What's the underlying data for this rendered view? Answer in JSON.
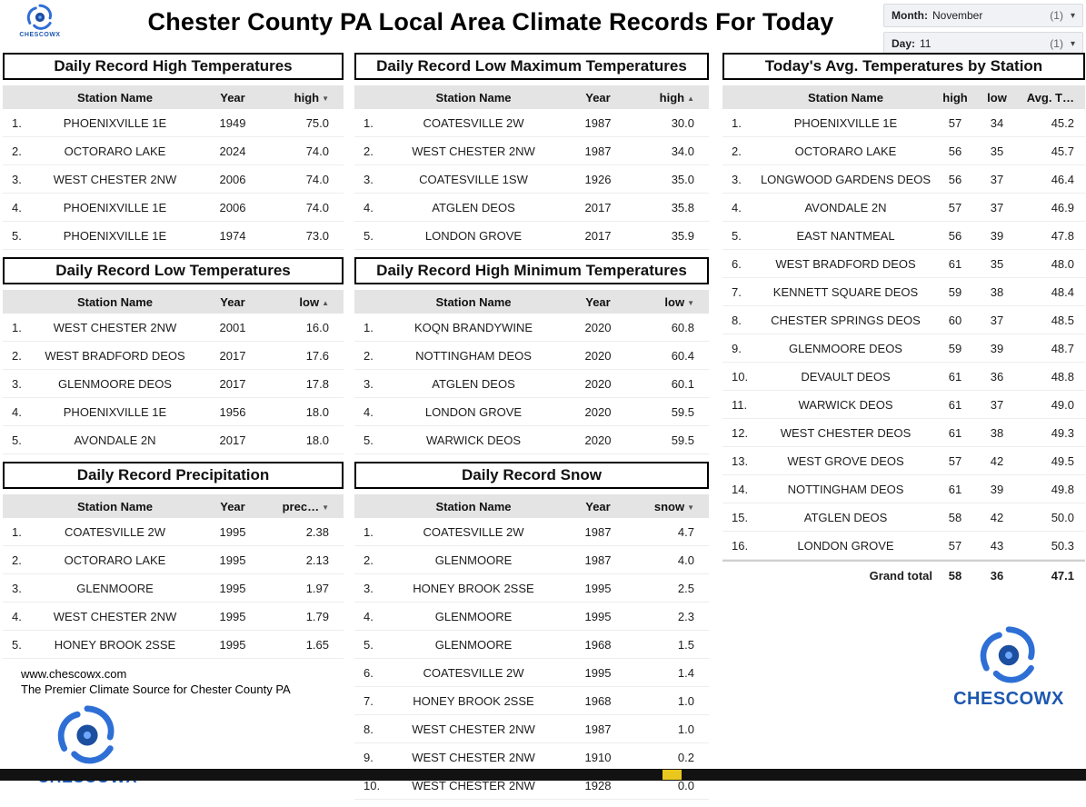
{
  "page": {
    "title": "Chester County PA Local Area Climate Records For Today",
    "brand": "CHESCOWX",
    "website": "www.chescowx.com",
    "tagline": "The Premier Climate Source for Chester County PA",
    "brand_color": "#1d57b0",
    "accent_color": "#e9c71e"
  },
  "icons": {
    "dropdown_caret": "▾"
  },
  "filters": {
    "month": {
      "label": "Month:",
      "value": "November",
      "count": "(1)"
    },
    "day": {
      "label": "Day:",
      "value": "11",
      "count": "(1)"
    }
  },
  "tables": [
    {
      "id": "record-high",
      "title": "Daily Record High Temperatures",
      "layout": "3col",
      "headers": {
        "station": "Station Name",
        "year": "Year",
        "value": "high",
        "arrow": "▼"
      },
      "rows": [
        [
          "1.",
          "PHOENIXVILLE 1E",
          "1949",
          "75.0"
        ],
        [
          "2.",
          "OCTORARO LAKE",
          "2024",
          "74.0"
        ],
        [
          "3.",
          "WEST CHESTER 2NW",
          "2006",
          "74.0"
        ],
        [
          "4.",
          "PHOENIXVILLE 1E",
          "2006",
          "74.0"
        ],
        [
          "5.",
          "PHOENIXVILLE 1E",
          "1974",
          "73.0"
        ]
      ]
    },
    {
      "id": "record-low",
      "title": "Daily Record Low Temperatures",
      "layout": "3col",
      "headers": {
        "station": "Station Name",
        "year": "Year",
        "value": "low",
        "arrow": "▲"
      },
      "rows": [
        [
          "1.",
          "WEST CHESTER 2NW",
          "2001",
          "16.0"
        ],
        [
          "2.",
          "WEST BRADFORD DEOS",
          "2017",
          "17.6"
        ],
        [
          "3.",
          "GLENMOORE DEOS",
          "2017",
          "17.8"
        ],
        [
          "4.",
          "PHOENIXVILLE 1E",
          "1956",
          "18.0"
        ],
        [
          "5.",
          "AVONDALE 2N",
          "2017",
          "18.0"
        ]
      ]
    },
    {
      "id": "precip",
      "title": "Daily Record Precipitation",
      "layout": "3col",
      "headers": {
        "station": "Station Name",
        "year": "Year",
        "value": "prec…",
        "arrow": "▼"
      },
      "rows": [
        [
          "1.",
          "COATESVILLE 2W",
          "1995",
          "2.38"
        ],
        [
          "2.",
          "OCTORARO LAKE",
          "1995",
          "2.13"
        ],
        [
          "3.",
          "GLENMOORE",
          "1995",
          "1.97"
        ],
        [
          "4.",
          "WEST CHESTER 2NW",
          "1995",
          "1.79"
        ],
        [
          "5.",
          "HONEY BROOK 2SSE",
          "1995",
          "1.65"
        ]
      ]
    },
    {
      "id": "low-max",
      "title": "Daily Record Low Maximum Temperatures",
      "layout": "3col",
      "headers": {
        "station": "Station Name",
        "year": "Year",
        "value": "high",
        "arrow": "▲"
      },
      "rows": [
        [
          "1.",
          "COATESVILLE 2W",
          "1987",
          "30.0"
        ],
        [
          "2.",
          "WEST CHESTER 2NW",
          "1987",
          "34.0"
        ],
        [
          "3.",
          "COATESVILLE 1SW",
          "1926",
          "35.0"
        ],
        [
          "4.",
          "ATGLEN DEOS",
          "2017",
          "35.8"
        ],
        [
          "5.",
          "LONDON GROVE",
          "2017",
          "35.9"
        ]
      ]
    },
    {
      "id": "high-min",
      "title": "Daily Record High Minimum Temperatures",
      "layout": "3col",
      "headers": {
        "station": "Station Name",
        "year": "Year",
        "value": "low",
        "arrow": "▼"
      },
      "rows": [
        [
          "1.",
          "KOQN BRANDYWINE",
          "2020",
          "60.8"
        ],
        [
          "2.",
          "NOTTINGHAM DEOS",
          "2020",
          "60.4"
        ],
        [
          "3.",
          "ATGLEN DEOS",
          "2020",
          "60.1"
        ],
        [
          "4.",
          "LONDON GROVE",
          "2020",
          "59.5"
        ],
        [
          "5.",
          "WARWICK DEOS",
          "2020",
          "59.5"
        ]
      ]
    },
    {
      "id": "snow",
      "title": "Daily Record Snow",
      "layout": "3col",
      "headers": {
        "station": "Station Name",
        "year": "Year",
        "value": "snow",
        "arrow": "▼"
      },
      "rows": [
        [
          "1.",
          "COATESVILLE 2W",
          "1987",
          "4.7"
        ],
        [
          "2.",
          "GLENMOORE",
          "1987",
          "4.0"
        ],
        [
          "3.",
          "HONEY BROOK 2SSE",
          "1995",
          "2.5"
        ],
        [
          "4.",
          "GLENMOORE",
          "1995",
          "2.3"
        ],
        [
          "5.",
          "GLENMOORE",
          "1968",
          "1.5"
        ],
        [
          "6.",
          "COATESVILLE 2W",
          "1995",
          "1.4"
        ],
        [
          "7.",
          "HONEY BROOK 2SSE",
          "1968",
          "1.0"
        ],
        [
          "8.",
          "WEST CHESTER 2NW",
          "1987",
          "1.0"
        ],
        [
          "9.",
          "WEST CHESTER 2NW",
          "1910",
          "0.2"
        ],
        [
          "10.",
          "WEST CHESTER 2NW",
          "1928",
          "0.0"
        ]
      ]
    },
    {
      "id": "avg",
      "title": "Today's Avg. Temperatures by Station",
      "layout": "4col",
      "headers": {
        "station": "Station Name",
        "high": "high",
        "low": "low",
        "avg": "Avg. T…"
      },
      "rows": [
        [
          "1.",
          "PHOENIXVILLE 1E",
          "57",
          "34",
          "45.2"
        ],
        [
          "2.",
          "OCTORARO LAKE",
          "56",
          "35",
          "45.7"
        ],
        [
          "3.",
          "LONGWOOD GARDENS DEOS",
          "56",
          "37",
          "46.4"
        ],
        [
          "4.",
          "AVONDALE 2N",
          "57",
          "37",
          "46.9"
        ],
        [
          "5.",
          "EAST NANTMEAL",
          "56",
          "39",
          "47.8"
        ],
        [
          "6.",
          "WEST BRADFORD DEOS",
          "61",
          "35",
          "48.0"
        ],
        [
          "7.",
          "KENNETT SQUARE DEOS",
          "59",
          "38",
          "48.4"
        ],
        [
          "8.",
          "CHESTER SPRINGS DEOS",
          "60",
          "37",
          "48.5"
        ],
        [
          "9.",
          "GLENMOORE DEOS",
          "59",
          "39",
          "48.7"
        ],
        [
          "10.",
          "DEVAULT DEOS",
          "61",
          "36",
          "48.8"
        ],
        [
          "11.",
          "WARWICK DEOS",
          "61",
          "37",
          "49.0"
        ],
        [
          "12.",
          "WEST CHESTER DEOS",
          "61",
          "38",
          "49.3"
        ],
        [
          "13.",
          "WEST GROVE DEOS",
          "57",
          "42",
          "49.5"
        ],
        [
          "14.",
          "NOTTINGHAM DEOS",
          "61",
          "39",
          "49.8"
        ],
        [
          "15.",
          "ATGLEN DEOS",
          "58",
          "42",
          "50.0"
        ],
        [
          "16.",
          "LONDON GROVE",
          "57",
          "43",
          "50.3"
        ]
      ],
      "grand_total": {
        "label": "Grand total",
        "high": "58",
        "low": "36",
        "avg": "47.1"
      }
    }
  ]
}
